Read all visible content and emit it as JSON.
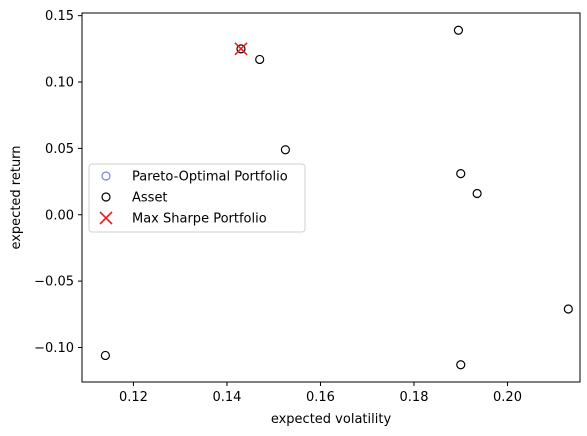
{
  "chart_data": {
    "type": "scatter",
    "title": "",
    "xlabel": "expected volatility",
    "ylabel": "expected return",
    "xlim": [
      0.109,
      0.2155
    ],
    "ylim": [
      -0.126,
      0.152
    ],
    "xticks": [
      0.12,
      0.14,
      0.16,
      0.18,
      0.2
    ],
    "xtick_labels": [
      "0.12",
      "0.14",
      "0.16",
      "0.18",
      "0.20"
    ],
    "yticks": [
      -0.1,
      -0.05,
      0.0,
      0.05,
      0.1,
      0.15
    ],
    "ytick_labels": [
      "−0.10",
      "−0.05",
      "0.00",
      "0.05",
      "0.10",
      "0.15"
    ],
    "grid": false,
    "legend_position": "center-left",
    "series": [
      {
        "name": "Pareto-Optimal Portfolio",
        "marker": "hollow-circle",
        "color": "#7b7ff0",
        "points": []
      },
      {
        "name": "Asset",
        "marker": "hollow-circle",
        "color": "#000000",
        "points": [
          {
            "x": 0.1895,
            "y": 0.139
          },
          {
            "x": 0.147,
            "y": 0.117
          },
          {
            "x": 0.1525,
            "y": 0.049
          },
          {
            "x": 0.19,
            "y": 0.031
          },
          {
            "x": 0.1935,
            "y": 0.016
          },
          {
            "x": 0.213,
            "y": -0.071
          },
          {
            "x": 0.114,
            "y": -0.106
          },
          {
            "x": 0.19,
            "y": -0.113
          },
          {
            "x": 0.143,
            "y": 0.125
          }
        ]
      },
      {
        "name": "Max Sharpe Portfolio",
        "marker": "x",
        "color": "#e8201c",
        "points": [
          {
            "x": 0.143,
            "y": 0.125
          }
        ]
      }
    ]
  }
}
